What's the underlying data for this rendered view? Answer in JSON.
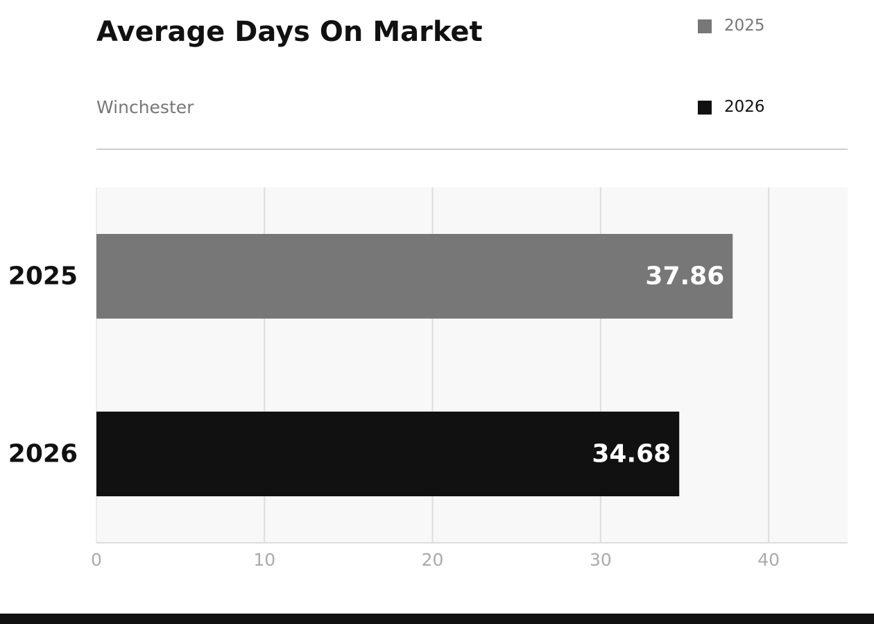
{
  "chart_data": {
    "type": "bar",
    "orientation": "horizontal",
    "title": "Average Days On Market",
    "subtitle": "Winchester",
    "categories": [
      "2025",
      "2026"
    ],
    "values": [
      37.86,
      34.68
    ],
    "value_labels": [
      "37.86",
      "34.68"
    ],
    "colors": [
      "#777777",
      "#111111"
    ],
    "legend": {
      "placement": "top-right",
      "entries": [
        {
          "label": "2025",
          "color": "#777777"
        },
        {
          "label": "2026",
          "color": "#111111"
        }
      ]
    },
    "xticks": [
      "0",
      "10",
      "20",
      "30",
      "40"
    ],
    "xtick_values": [
      0,
      10,
      20,
      30,
      40
    ],
    "xlim": [
      0,
      44.7
    ],
    "grid": "vertical",
    "xlabel": "",
    "ylabel": ""
  },
  "colors": {
    "plot_background": "#f8f8f8",
    "grid": "#dddddd",
    "tick_label": "#aaaaaa",
    "bar_label": "#ffffff",
    "category_label": "#111111"
  }
}
